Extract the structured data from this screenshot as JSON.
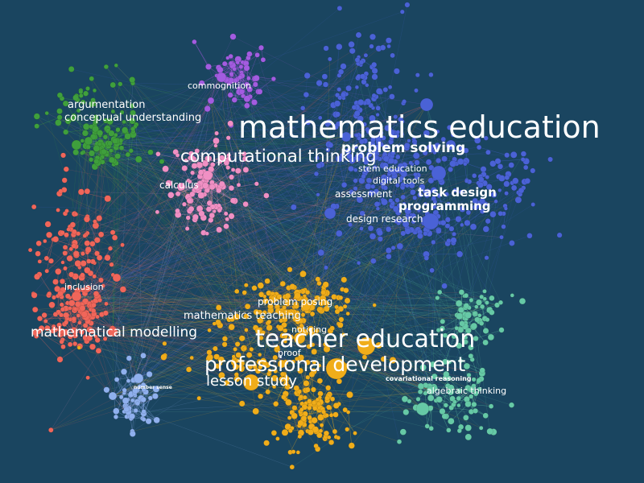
{
  "background": "#1a4560",
  "clusters": [
    {
      "id": "blue",
      "color": "#4a62d6"
    },
    {
      "id": "purple",
      "color": "#a35ce0"
    },
    {
      "id": "green",
      "color": "#3f9f3c"
    },
    {
      "id": "pink",
      "color": "#f090c4"
    },
    {
      "id": "red",
      "color": "#f0665a"
    },
    {
      "id": "orange",
      "color": "#f0ad1a"
    },
    {
      "id": "teal",
      "color": "#66c9a6"
    },
    {
      "id": "lightblue",
      "color": "#8fb0ee"
    }
  ],
  "labels": [
    {
      "text": "mathematics education",
      "cluster": "blue"
    },
    {
      "text": "problem solving",
      "cluster": "blue"
    },
    {
      "text": "stem education",
      "cluster": "blue"
    },
    {
      "text": "digital tools",
      "cluster": "blue"
    },
    {
      "text": "assessment",
      "cluster": "blue"
    },
    {
      "text": "task design",
      "cluster": "blue"
    },
    {
      "text": "programming",
      "cluster": "blue"
    },
    {
      "text": "design research",
      "cluster": "blue"
    },
    {
      "text": "commognition",
      "cluster": "purple"
    },
    {
      "text": "argumentation",
      "cluster": "green"
    },
    {
      "text": "conceptual understanding",
      "cluster": "green"
    },
    {
      "text": "computational thinking",
      "cluster": "pink"
    },
    {
      "text": "calculus",
      "cluster": "pink"
    },
    {
      "text": "inclusion",
      "cluster": "red"
    },
    {
      "text": "mathematical modelling",
      "cluster": "red"
    },
    {
      "text": "problem posing",
      "cluster": "orange"
    },
    {
      "text": "mathematics teaching",
      "cluster": "orange"
    },
    {
      "text": "noticing",
      "cluster": "orange"
    },
    {
      "text": "teacher education",
      "cluster": "orange"
    },
    {
      "text": "proof",
      "cluster": "orange"
    },
    {
      "text": "professional development",
      "cluster": "orange"
    },
    {
      "text": "lesson study",
      "cluster": "orange"
    },
    {
      "text": "number sense",
      "cluster": "lightblue"
    },
    {
      "text": "covariational reasoning",
      "cluster": "teal"
    },
    {
      "text": "algebraic thinking",
      "cluster": "teal"
    }
  ]
}
